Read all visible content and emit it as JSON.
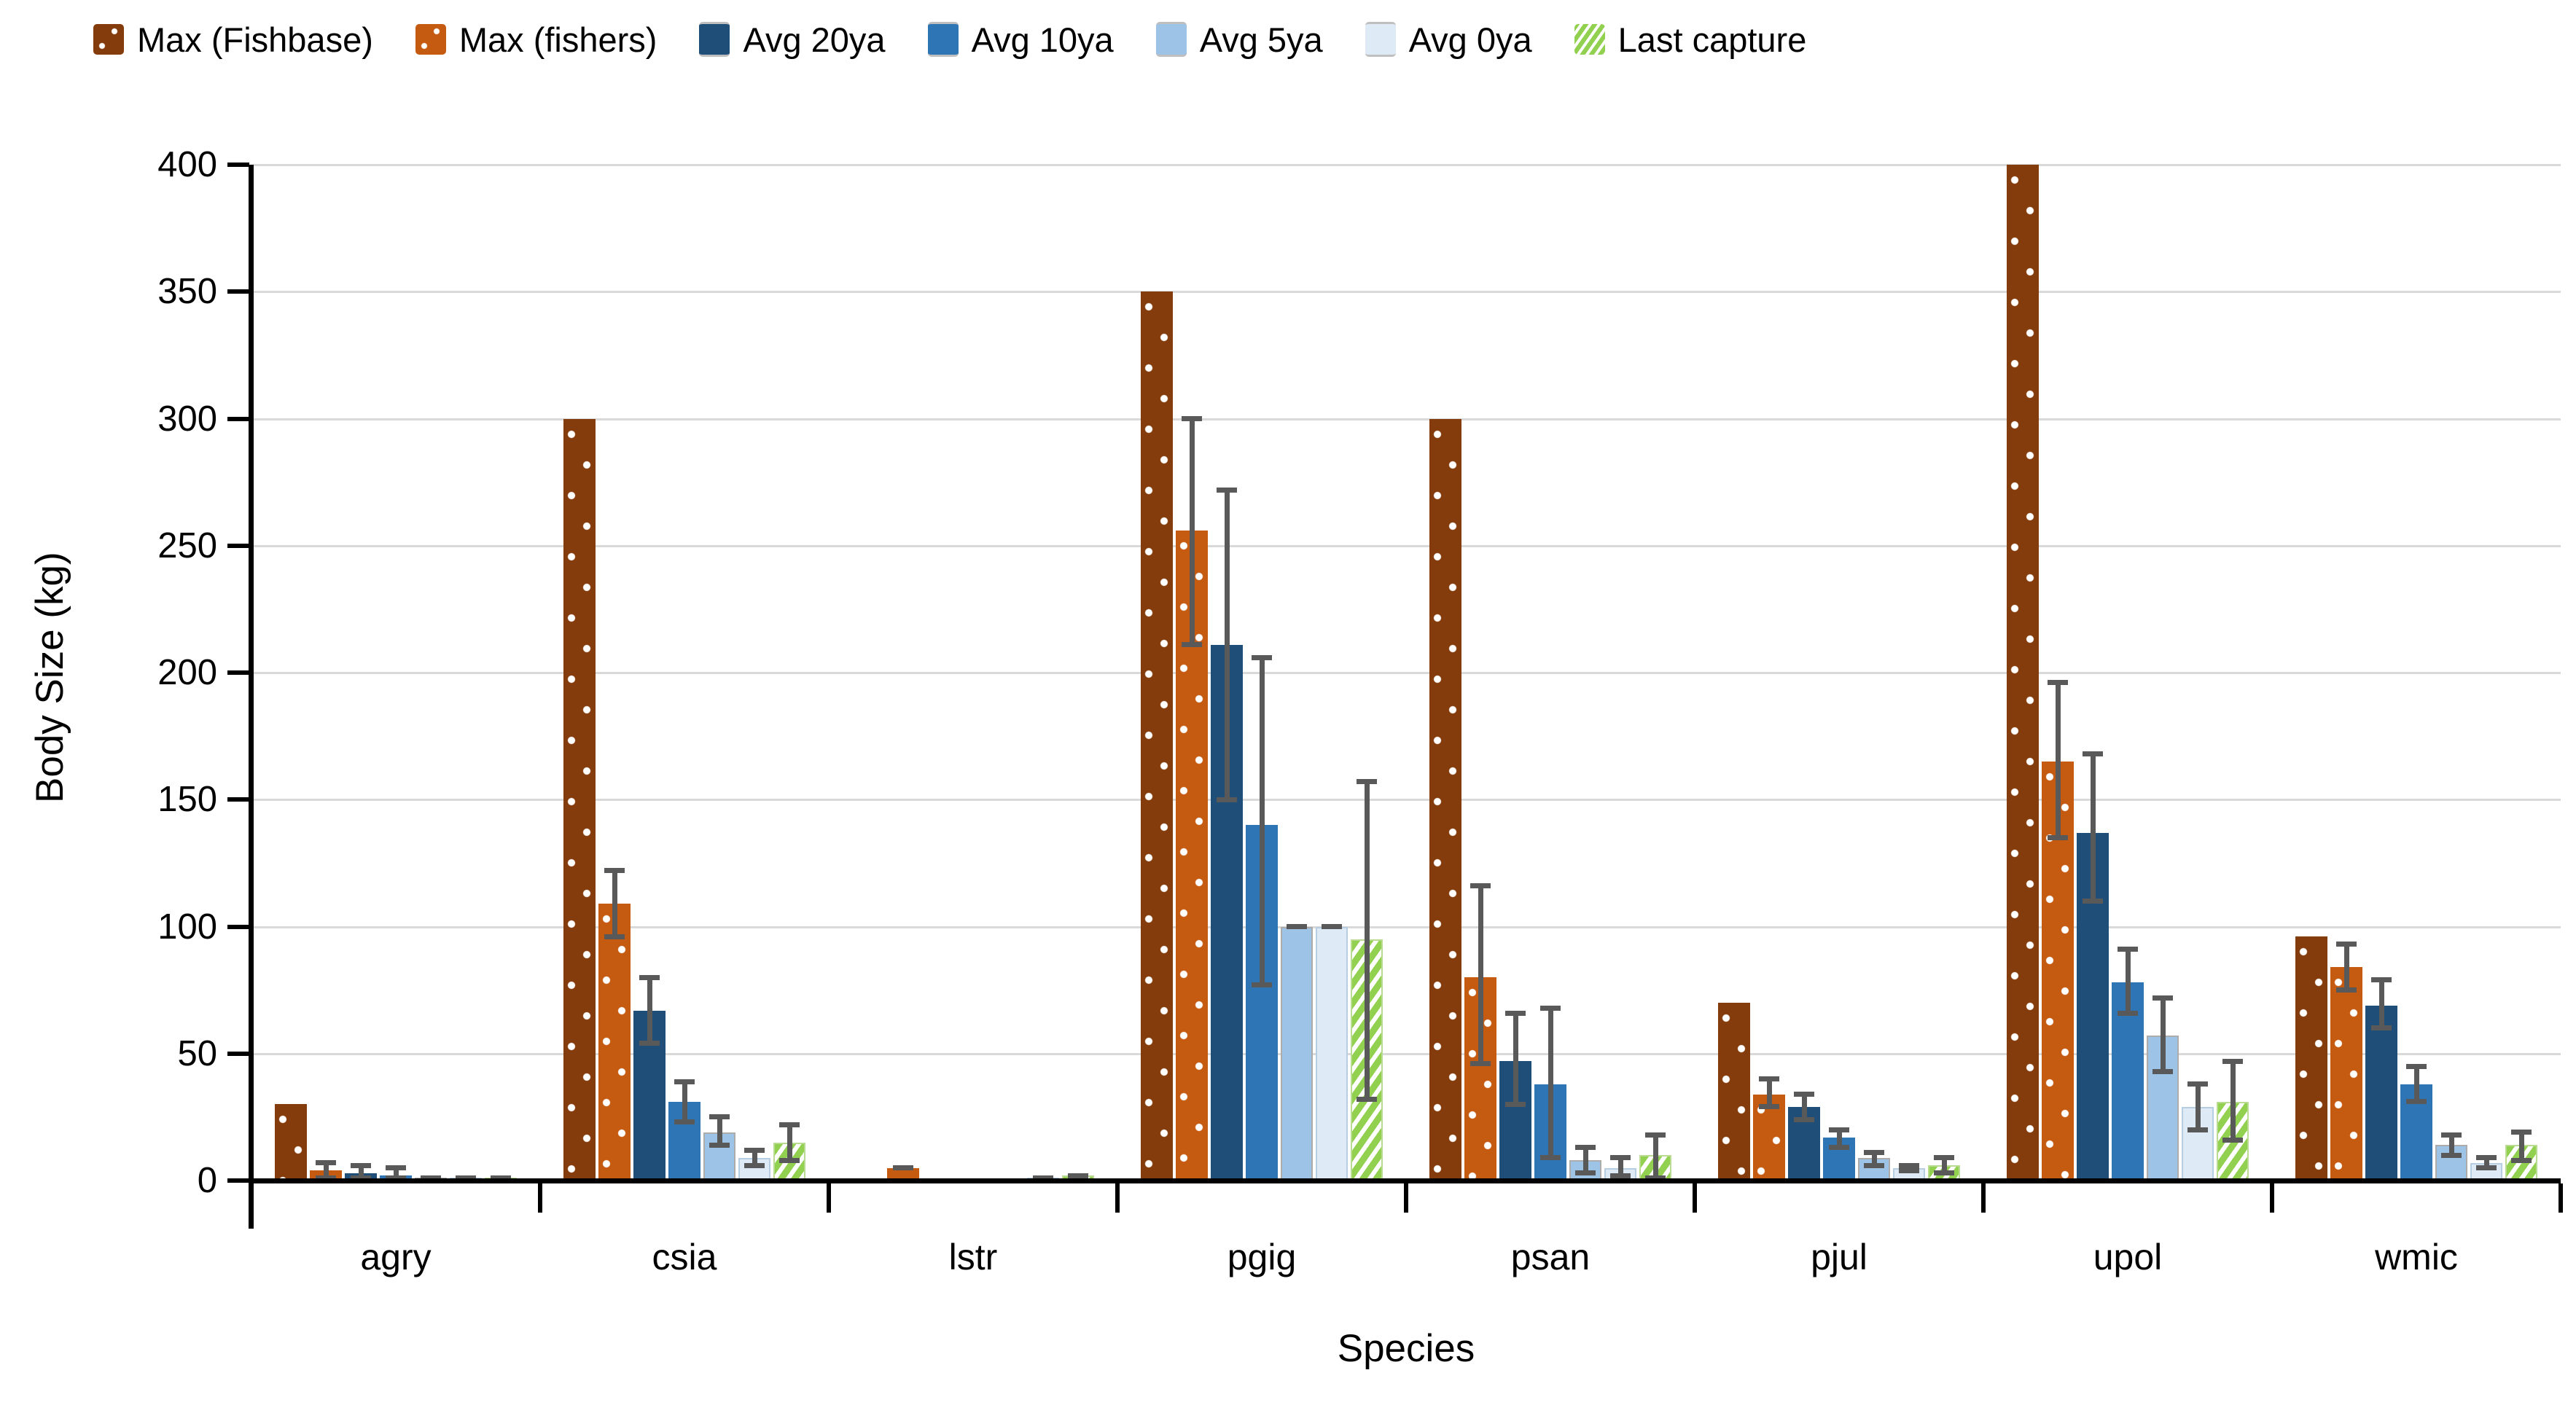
{
  "y_axis": {
    "title": "Body Size (kg)",
    "tick_labels": [
      "0",
      "50",
      "100",
      "150",
      "200",
      "250",
      "300",
      "350",
      "400"
    ]
  },
  "x_axis": {
    "title": "Species"
  },
  "legend": [
    {
      "label": "Max (Fishbase)",
      "key": "fishbase"
    },
    {
      "label": "Max (fishers)",
      "key": "fishers"
    },
    {
      "label": "Avg 20ya",
      "key": "avg20"
    },
    {
      "label": "Avg 10ya",
      "key": "avg10"
    },
    {
      "label": "Avg 5ya",
      "key": "avg5"
    },
    {
      "label": "Avg 0ya",
      "key": "avg0"
    },
    {
      "label": "Last capture",
      "key": "last"
    }
  ],
  "colors": {
    "max_fishbase": "#843C0C",
    "max_fishers": "#C55A11",
    "avg_20ya": "#1F4E79",
    "avg_10ya": "#2E75B6",
    "avg_5ya": "#9DC3E6",
    "avg_0ya": "#DEEBF7",
    "last_capture": "#92D050",
    "error_bar": "#595959",
    "gridline": "#D9D9D9"
  },
  "chart_data": {
    "type": "bar",
    "title": "",
    "xlabel": "Species",
    "ylabel": "Body Size (kg)",
    "ylim": [
      0,
      400
    ],
    "ytick_step": 50,
    "grid": true,
    "legend_position": "top",
    "categories": [
      "agry",
      "csia",
      "lstr",
      "pgig",
      "psan",
      "pjul",
      "upol",
      "wmic"
    ],
    "series": [
      {
        "name": "Max (Fishbase)",
        "key": "fishbase",
        "pattern": "dots",
        "values": [
          30,
          300,
          0,
          350,
          300,
          70,
          400,
          96
        ],
        "errors": [
          null,
          null,
          null,
          null,
          null,
          null,
          null,
          null
        ]
      },
      {
        "name": "Max (fishers)",
        "key": "fishers",
        "pattern": "dots",
        "values": [
          4,
          109,
          5,
          256,
          80,
          34,
          165,
          84
        ],
        "errors": [
          [
            3,
            3
          ],
          [
            13,
            13
          ],
          [
            0,
            0
          ],
          [
            45,
            44
          ],
          [
            34,
            36
          ],
          [
            5,
            6
          ],
          [
            30,
            31
          ],
          [
            9,
            9
          ]
        ]
      },
      {
        "name": "Avg 20ya",
        "key": "avg20",
        "pattern": "solid",
        "values": [
          3,
          67,
          0,
          211,
          47,
          29,
          137,
          69
        ],
        "errors": [
          [
            2,
            3
          ],
          [
            13,
            13
          ],
          null,
          [
            61,
            61
          ],
          [
            17,
            19
          ],
          [
            5,
            5
          ],
          [
            27,
            31
          ],
          [
            9,
            10
          ]
        ]
      },
      {
        "name": "Avg 10ya",
        "key": "avg10",
        "pattern": "solid",
        "values": [
          2,
          31,
          0,
          140,
          38,
          17,
          78,
          38
        ],
        "errors": [
          [
            2,
            3
          ],
          [
            8,
            8
          ],
          null,
          [
            63,
            66
          ],
          [
            29,
            30
          ],
          [
            4,
            3
          ],
          [
            12,
            13
          ],
          [
            7,
            7
          ]
        ]
      },
      {
        "name": "Avg 5ya",
        "key": "avg5",
        "pattern": "solid",
        "values": [
          1,
          19,
          0,
          100,
          8,
          9,
          57,
          14
        ],
        "errors": [
          [
            0,
            0
          ],
          [
            5,
            6
          ],
          null,
          [
            0,
            0
          ],
          [
            5,
            5
          ],
          [
            3,
            2
          ],
          [
            14,
            15
          ],
          [
            4,
            4
          ]
        ]
      },
      {
        "name": "Avg 0ya",
        "key": "avg0",
        "pattern": "solid",
        "values": [
          1,
          9,
          1,
          100,
          5,
          5,
          29,
          7
        ],
        "errors": [
          [
            0,
            0
          ],
          [
            3,
            3
          ],
          [
            0,
            0
          ],
          [
            0,
            0
          ],
          [
            3,
            4
          ],
          [
            1,
            1
          ],
          [
            9,
            9
          ],
          [
            2,
            2
          ]
        ]
      },
      {
        "name": "Last capture",
        "key": "last",
        "pattern": "stripes",
        "values": [
          1,
          15,
          2,
          95,
          10,
          6,
          31,
          14
        ],
        "errors": [
          [
            0,
            0
          ],
          [
            7,
            7
          ],
          [
            0,
            0
          ],
          [
            63,
            62
          ],
          [
            9,
            8
          ],
          [
            3,
            3
          ],
          [
            15,
            16
          ],
          [
            6,
            5
          ]
        ]
      }
    ]
  },
  "layout_note": "grouped column chart with standard-deviation error bars"
}
